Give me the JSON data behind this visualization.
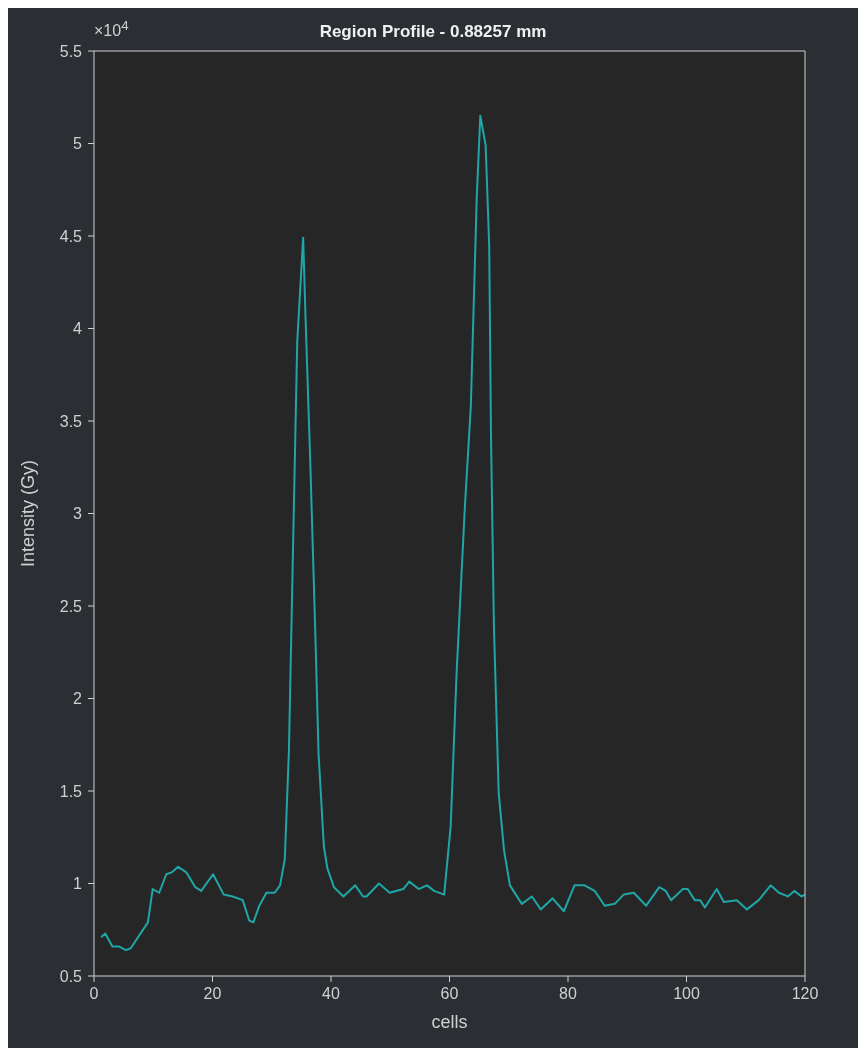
{
  "chart_data": {
    "type": "line",
    "title": "Region Profile - 0.88257 mm",
    "xlabel": "cells",
    "ylabel": "Intensity (Gy)",
    "annotations": [
      "×10$^{4}$"
    ],
    "x": [
      1.2,
      1.9,
      3.1,
      4.2,
      5.4,
      6.2,
      9.1,
      9.9,
      11,
      12.2,
      13.1,
      14.2,
      15.6,
      17.1,
      18.1,
      20.1,
      21.9,
      23.4,
      25.1,
      26.2,
      26.9,
      27.9,
      29.1,
      30.5,
      31.4,
      32.2,
      32.9,
      34.3,
      35.3,
      35.7,
      36.5,
      37.4,
      37.9,
      38.8,
      39.4,
      40.5,
      42.1,
      44.1,
      45.4,
      46,
      48.1,
      49.9,
      52.2,
      53.2,
      54.8,
      56.2,
      57.4,
      59.1,
      60.2,
      61.2,
      62.6,
      63.6,
      64.6,
      65.2,
      66.1,
      66.7,
      67,
      67.5,
      68.3,
      69.2,
      70.2,
      72.2,
      73.9,
      75.4,
      77.4,
      79.3,
      81.1,
      82.8,
      84.5,
      86.2,
      87.9,
      89.4,
      91.1,
      93.2,
      95.4,
      96.5,
      97.4,
      99.4,
      100.2,
      101.4,
      102.3,
      103.1,
      105.1,
      106.3,
      108.5,
      110.2,
      112.2,
      114.2,
      115.6,
      117.1,
      118.2,
      119.4,
      120
    ],
    "series": [
      {
        "color": "#1fa6a6",
        "values": [
          0.71,
          0.73,
          0.66,
          0.66,
          0.64,
          0.65,
          0.79,
          0.97,
          0.95,
          1.05,
          1.06,
          1.09,
          1.06,
          0.98,
          0.96,
          1.05,
          0.94,
          0.93,
          0.91,
          0.8,
          0.79,
          0.88,
          0.95,
          0.95,
          0.99,
          1.13,
          1.72,
          3.93,
          4.49,
          4.06,
          3.28,
          2.3,
          1.7,
          1.2,
          1.08,
          0.98,
          0.93,
          0.99,
          0.93,
          0.93,
          1.0,
          0.95,
          0.97,
          1.01,
          0.97,
          0.99,
          0.96,
          0.94,
          1.31,
          2.14,
          3.04,
          3.58,
          4.71,
          5.15,
          4.99,
          4.45,
          3.43,
          2.39,
          1.49,
          1.18,
          0.99,
          0.89,
          0.93,
          0.86,
          0.92,
          0.85,
          0.99,
          0.99,
          0.96,
          0.88,
          0.89,
          0.94,
          0.95,
          0.88,
          0.98,
          0.96,
          0.91,
          0.97,
          0.97,
          0.91,
          0.91,
          0.87,
          0.97,
          0.9,
          0.91,
          0.86,
          0.91,
          0.99,
          0.95,
          0.93,
          0.96,
          0.93,
          0.94
        ]
      }
    ],
    "xlim": [
      0,
      120
    ],
    "xticks": [
      0,
      20,
      40,
      60,
      80,
      100,
      120
    ],
    "ylim": [
      0.5,
      5.5
    ],
    "yticks": [
      0.5,
      1,
      1.5,
      2,
      2.5,
      3,
      3.5,
      4,
      4.5,
      5,
      5.5
    ]
  }
}
